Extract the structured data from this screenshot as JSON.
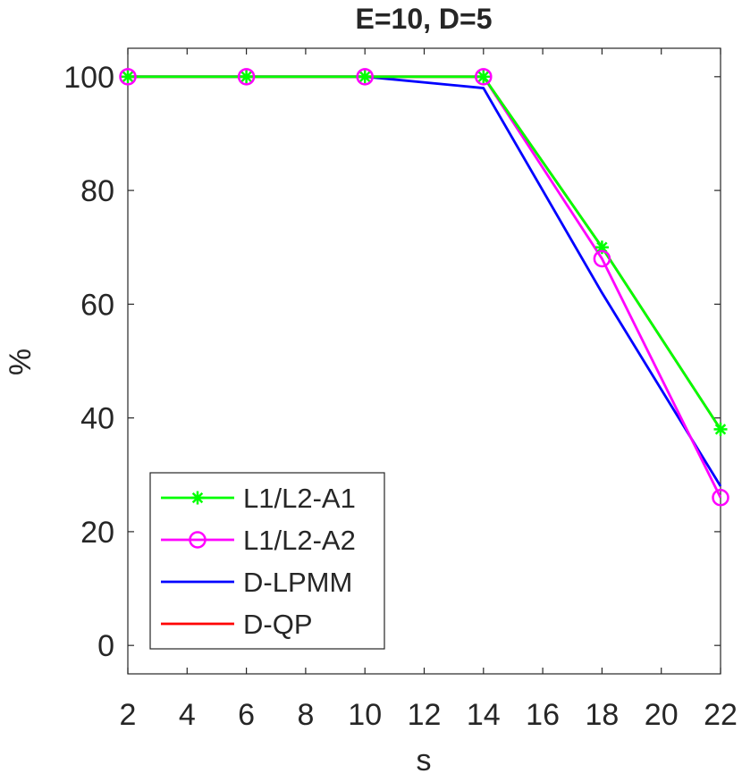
{
  "chart_data": {
    "type": "line",
    "title": "E=10, D=5",
    "xlabel": "s",
    "ylabel": "%",
    "xlim": [
      2,
      22
    ],
    "ylim": [
      -5,
      105
    ],
    "xticks": [
      2,
      4,
      6,
      8,
      10,
      12,
      14,
      16,
      18,
      20,
      22
    ],
    "yticks": [
      0,
      20,
      40,
      60,
      80,
      100
    ],
    "x": [
      2,
      6,
      10,
      14,
      18,
      22
    ],
    "grid": false,
    "legend_position": "bottom-left",
    "series": [
      {
        "name": "L1/L2-A1",
        "color": "#00ff00",
        "marker": "asterisk",
        "values": [
          100,
          100,
          100,
          100,
          70,
          38
        ]
      },
      {
        "name": "L1/L2-A2",
        "color": "#ff00ff",
        "marker": "circle",
        "values": [
          100,
          100,
          100,
          100,
          68,
          26
        ]
      },
      {
        "name": "D-LPMM",
        "color": "#0000ff",
        "marker": "none",
        "values": [
          100,
          100,
          100,
          98,
          62,
          28
        ]
      },
      {
        "name": "D-QP",
        "color": "#ff0000",
        "marker": "none",
        "values": [
          100,
          100,
          100,
          100,
          70,
          38
        ]
      }
    ]
  }
}
